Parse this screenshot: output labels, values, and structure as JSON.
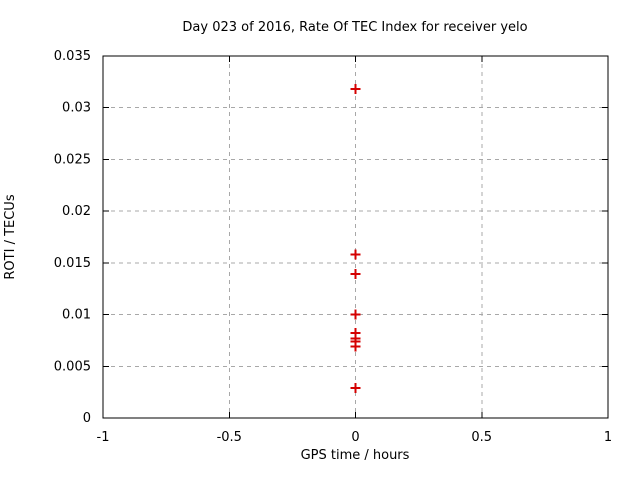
{
  "chart_data": {
    "type": "scatter",
    "title": "Day 023 of 2016, Rate Of TEC Index for receiver yelo",
    "xlabel": "GPS time / hours",
    "ylabel": "ROTI / TECUs",
    "xlim": [
      -1,
      1
    ],
    "ylim": [
      0,
      0.035
    ],
    "x_ticks": [
      -1,
      -0.5,
      0,
      0.5,
      1
    ],
    "x_tick_labels": [
      "-1",
      "-0.5",
      "0",
      "0.5",
      "1"
    ],
    "y_ticks": [
      0,
      0.005,
      0.01,
      0.015,
      0.02,
      0.025,
      0.03,
      0.035
    ],
    "y_tick_labels": [
      "0",
      "0.005",
      "0.01",
      "0.015",
      "0.02",
      "0.025",
      "0.03",
      "0.035"
    ],
    "grid": true,
    "legend": "none",
    "marker": "plus",
    "marker_color": "#d40000",
    "grid_color": "#a8a8a8",
    "axis_color": "#000000",
    "background_color": "#ffffff",
    "series": [
      {
        "name": "ROTI",
        "points": [
          {
            "x": 0,
            "y": 0.0318
          },
          {
            "x": 0,
            "y": 0.0158
          },
          {
            "x": 0,
            "y": 0.0139
          },
          {
            "x": 0,
            "y": 0.01
          },
          {
            "x": 0,
            "y": 0.0082
          },
          {
            "x": 0,
            "y": 0.0077
          },
          {
            "x": 0,
            "y": 0.0074
          },
          {
            "x": 0,
            "y": 0.0069
          },
          {
            "x": 0,
            "y": 0.0029
          }
        ]
      }
    ]
  }
}
